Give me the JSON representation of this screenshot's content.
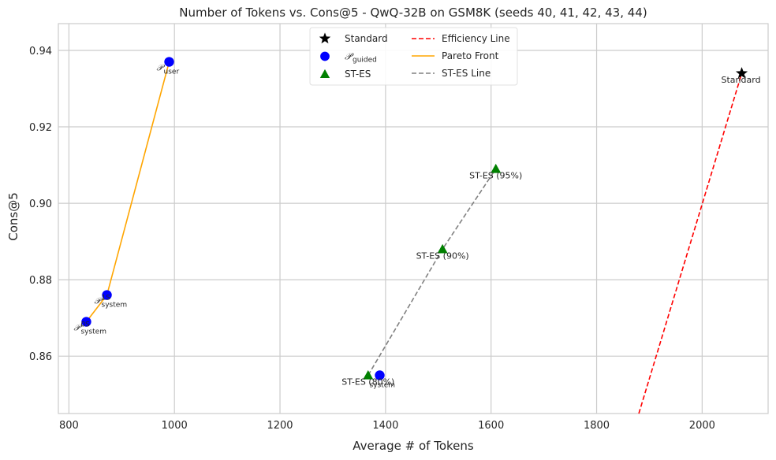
{
  "chart_data": {
    "type": "scatter",
    "title": "Number of Tokens vs. Cons@5 - QwQ-32B on GSM8K (seeds 40, 41, 42, 43, 44)",
    "xlabel": "Average # of Tokens",
    "ylabel": "Cons@5",
    "xlim": [
      780,
      2125
    ],
    "ylim": [
      0.845,
      0.947
    ],
    "xticks": [
      800,
      1000,
      1200,
      1400,
      1600,
      1800,
      2000
    ],
    "yticks": [
      0.86,
      0.88,
      0.9,
      0.92,
      0.94
    ],
    "xtick_labels": [
      "800",
      "1000",
      "1200",
      "1400",
      "1600",
      "1800",
      "2000"
    ],
    "ytick_labels": [
      "0.86",
      "0.88",
      "0.90",
      "0.92",
      "0.94"
    ],
    "grid": true,
    "legend_position": "top-center",
    "series": [
      {
        "name": "Standard",
        "kind": "scatter",
        "marker": "star",
        "color": "#000000",
        "points": [
          {
            "x": 2075,
            "y": 0.934,
            "label": "Standard"
          }
        ]
      },
      {
        "name": "P_guided",
        "name_main": "𝒫",
        "name_sub": "guided",
        "kind": "scatter",
        "marker": "circle",
        "color": "#0000ff",
        "points": [
          {
            "x": 990,
            "y": 0.937,
            "label_main": "𝒫",
            "label_sup": "",
            "label_sub": "user"
          },
          {
            "x": 872,
            "y": 0.876,
            "label_main": "𝒫",
            "label_sup": "1S",
            "label_sub": "system"
          },
          {
            "x": 833,
            "y": 0.869,
            "label_main": "𝒫",
            "label_sup": "0S",
            "label_sub": "system"
          },
          {
            "x": 1389,
            "y": 0.855,
            "label_main": "",
            "label_sup": "",
            "label_sub": "system"
          }
        ]
      },
      {
        "name": "ST-ES",
        "kind": "scatter",
        "marker": "triangle",
        "color": "#008000",
        "points": [
          {
            "x": 1609,
            "y": 0.909,
            "label": "ST-ES (95%)"
          },
          {
            "x": 1508,
            "y": 0.888,
            "label": "ST-ES (90%)"
          },
          {
            "x": 1367,
            "y": 0.855,
            "label": "ST-ES (80%)"
          }
        ]
      },
      {
        "name": "Efficiency Line",
        "kind": "line",
        "style": "dashed",
        "color": "#ff0000",
        "points": [
          {
            "x": 1880,
            "y": 0.845
          },
          {
            "x": 2075,
            "y": 0.934
          }
        ]
      },
      {
        "name": "Pareto Front",
        "kind": "line",
        "style": "solid",
        "color": "#ffa500",
        "points": [
          {
            "x": 833,
            "y": 0.869
          },
          {
            "x": 872,
            "y": 0.876
          },
          {
            "x": 990,
            "y": 0.937
          }
        ]
      },
      {
        "name": "ST-ES Line",
        "kind": "line",
        "style": "dashed",
        "color": "#808080",
        "points": [
          {
            "x": 1367,
            "y": 0.855
          },
          {
            "x": 1508,
            "y": 0.888
          },
          {
            "x": 1609,
            "y": 0.909
          }
        ]
      }
    ]
  }
}
